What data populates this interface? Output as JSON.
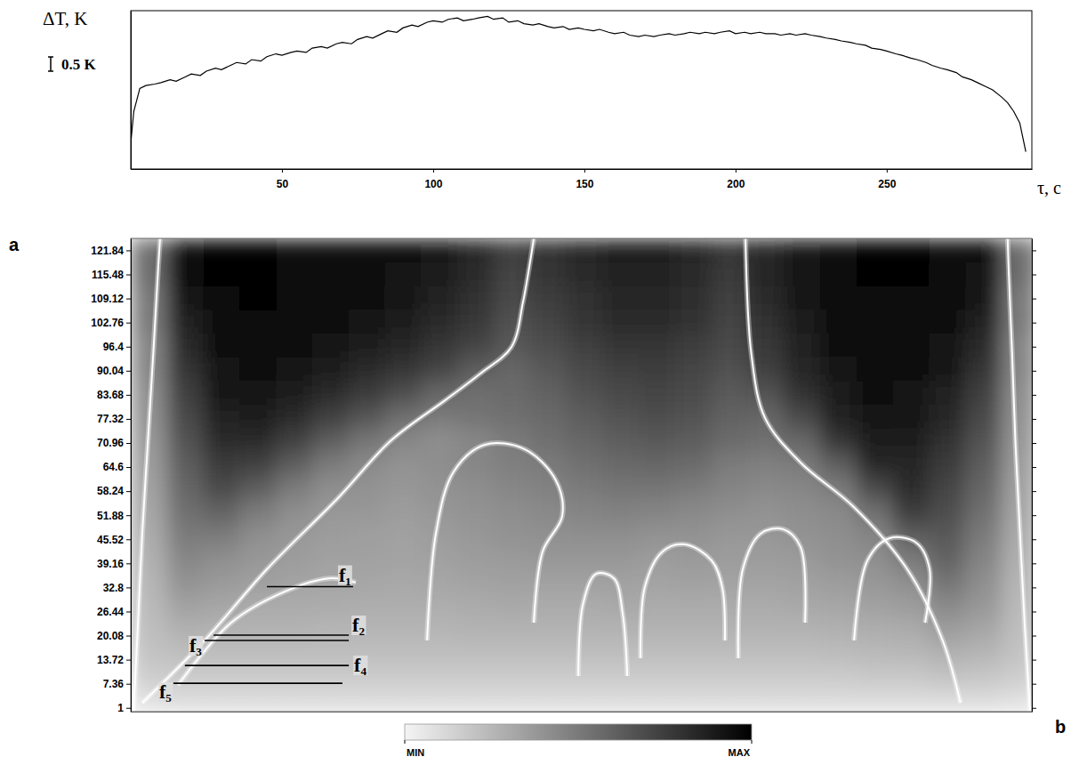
{
  "chart_data": [
    {
      "type": "line",
      "y_label": "ΔT, K",
      "x_label": "τ, c",
      "color": "#000000",
      "xlim": [
        0,
        298
      ],
      "ylim": [
        0,
        5.5
      ],
      "xticks": [
        50,
        100,
        150,
        200,
        250
      ],
      "tick_labels": "x",
      "scale_bar": {
        "value": 0.5,
        "label": "0.5 K"
      },
      "x": [
        0,
        1,
        3,
        5,
        8,
        10,
        13,
        15,
        18,
        20,
        23,
        25,
        28,
        30,
        33,
        35,
        38,
        40,
        43,
        45,
        48,
        50,
        53,
        55,
        58,
        60,
        63,
        65,
        68,
        70,
        73,
        75,
        78,
        80,
        83,
        85,
        88,
        90,
        93,
        95,
        98,
        100,
        103,
        105,
        108,
        110,
        113,
        115,
        118,
        120,
        123,
        125,
        128,
        130,
        133,
        135,
        138,
        140,
        143,
        145,
        148,
        150,
        153,
        155,
        158,
        160,
        163,
        165,
        168,
        170,
        173,
        175,
        178,
        180,
        183,
        185,
        188,
        190,
        193,
        195,
        198,
        200,
        203,
        205,
        208,
        210,
        213,
        215,
        218,
        220,
        223,
        225,
        228,
        230,
        233,
        235,
        238,
        240,
        243,
        245,
        248,
        250,
        253,
        255,
        258,
        260,
        263,
        265,
        268,
        270,
        273,
        275,
        278,
        280,
        283,
        285,
        288,
        290,
        292,
        294,
        296
      ],
      "values": [
        0.9,
        2.0,
        2.8,
        2.9,
        2.95,
        3.0,
        3.1,
        3.05,
        3.2,
        3.3,
        3.25,
        3.4,
        3.5,
        3.45,
        3.6,
        3.7,
        3.65,
        3.8,
        3.75,
        3.9,
        4.0,
        3.95,
        4.05,
        4.1,
        4.05,
        4.2,
        4.25,
        4.2,
        4.35,
        4.4,
        4.35,
        4.5,
        4.6,
        4.55,
        4.7,
        4.8,
        4.75,
        4.9,
        5.0,
        4.95,
        5.1,
        5.15,
        5.1,
        5.2,
        5.25,
        5.15,
        5.2,
        5.25,
        5.3,
        5.2,
        5.25,
        5.1,
        5.15,
        5.05,
        5.0,
        5.05,
        4.95,
        4.9,
        4.95,
        4.85,
        4.9,
        4.85,
        4.8,
        4.85,
        4.75,
        4.7,
        4.75,
        4.65,
        4.6,
        4.65,
        4.6,
        4.65,
        4.7,
        4.65,
        4.7,
        4.75,
        4.7,
        4.75,
        4.7,
        4.75,
        4.8,
        4.7,
        4.75,
        4.7,
        4.75,
        4.7,
        4.7,
        4.65,
        4.7,
        4.65,
        4.7,
        4.65,
        4.6,
        4.55,
        4.5,
        4.45,
        4.4,
        4.35,
        4.3,
        4.2,
        4.15,
        4.1,
        4.0,
        3.95,
        3.85,
        3.8,
        3.7,
        3.6,
        3.5,
        3.45,
        3.35,
        3.2,
        3.1,
        3.0,
        2.85,
        2.75,
        2.5,
        2.3,
        2.0,
        1.6,
        0.6
      ]
    },
    {
      "type": "heatmap",
      "xlim": [
        0,
        298
      ],
      "ylim": [
        0,
        125
      ],
      "tick_labels": "y",
      "yticks": [
        1,
        7.36,
        13.72,
        20.08,
        26.44,
        32.8,
        39.16,
        45.52,
        51.88,
        58.24,
        64.6,
        70.96,
        77.32,
        83.68,
        90.04,
        96.4,
        102.76,
        109.12,
        115.48,
        121.84
      ],
      "panel_labels": [
        "a",
        "b"
      ],
      "x_edges": [
        0,
        12,
        24,
        36,
        48,
        60,
        72,
        84,
        96,
        108,
        120,
        132,
        144,
        156,
        168,
        180,
        192,
        204,
        216,
        228,
        240,
        252,
        264,
        276,
        288,
        300
      ],
      "y_edges": [
        0,
        6.25,
        12.5,
        18.75,
        25,
        31.25,
        37.5,
        43.75,
        50,
        56.25,
        62.5,
        68.75,
        75,
        81.25,
        87.5,
        93.75,
        100,
        106.25,
        112.5,
        118.75,
        125
      ],
      "z": [
        [
          0.08,
          0.1,
          0.1,
          0.1,
          0.1,
          0.1,
          0.1,
          0.1,
          0.1,
          0.1,
          0.1,
          0.1,
          0.1,
          0.1,
          0.1,
          0.1,
          0.1,
          0.1,
          0.1,
          0.1,
          0.1,
          0.1,
          0.1,
          0.1,
          0.08
        ],
        [
          0.16,
          0.17,
          0.17,
          0.17,
          0.17,
          0.17,
          0.17,
          0.17,
          0.17,
          0.17,
          0.17,
          0.17,
          0.17,
          0.17,
          0.17,
          0.17,
          0.17,
          0.17,
          0.17,
          0.17,
          0.18,
          0.18,
          0.2,
          0.19,
          0.16
        ],
        [
          0.2,
          0.22,
          0.22,
          0.22,
          0.22,
          0.22,
          0.22,
          0.22,
          0.22,
          0.22,
          0.22,
          0.22,
          0.22,
          0.22,
          0.22,
          0.22,
          0.22,
          0.22,
          0.22,
          0.23,
          0.24,
          0.25,
          0.28,
          0.26,
          0.2
        ],
        [
          0.22,
          0.28,
          0.27,
          0.27,
          0.27,
          0.26,
          0.26,
          0.26,
          0.26,
          0.27,
          0.27,
          0.27,
          0.27,
          0.27,
          0.27,
          0.27,
          0.27,
          0.27,
          0.27,
          0.28,
          0.29,
          0.3,
          0.36,
          0.32,
          0.22
        ],
        [
          0.24,
          0.34,
          0.32,
          0.3,
          0.3,
          0.3,
          0.29,
          0.29,
          0.29,
          0.3,
          0.31,
          0.3,
          0.3,
          0.31,
          0.3,
          0.3,
          0.3,
          0.3,
          0.31,
          0.32,
          0.34,
          0.36,
          0.44,
          0.38,
          0.24
        ],
        [
          0.26,
          0.4,
          0.37,
          0.35,
          0.33,
          0.32,
          0.32,
          0.31,
          0.32,
          0.33,
          0.34,
          0.34,
          0.34,
          0.34,
          0.33,
          0.34,
          0.33,
          0.33,
          0.34,
          0.36,
          0.38,
          0.42,
          0.52,
          0.42,
          0.26
        ],
        [
          0.28,
          0.45,
          0.42,
          0.38,
          0.36,
          0.34,
          0.34,
          0.33,
          0.34,
          0.36,
          0.37,
          0.38,
          0.38,
          0.38,
          0.36,
          0.37,
          0.36,
          0.36,
          0.37,
          0.4,
          0.42,
          0.5,
          0.6,
          0.46,
          0.28
        ],
        [
          0.3,
          0.5,
          0.5,
          0.42,
          0.38,
          0.36,
          0.35,
          0.34,
          0.36,
          0.38,
          0.4,
          0.41,
          0.42,
          0.42,
          0.4,
          0.4,
          0.38,
          0.38,
          0.4,
          0.42,
          0.46,
          0.62,
          0.64,
          0.5,
          0.3
        ],
        [
          0.32,
          0.54,
          0.6,
          0.5,
          0.42,
          0.38,
          0.38,
          0.36,
          0.38,
          0.4,
          0.42,
          0.44,
          0.46,
          0.47,
          0.46,
          0.44,
          0.42,
          0.4,
          0.42,
          0.44,
          0.55,
          0.76,
          0.68,
          0.54,
          0.32
        ],
        [
          0.34,
          0.58,
          0.7,
          0.62,
          0.5,
          0.42,
          0.4,
          0.38,
          0.4,
          0.42,
          0.45,
          0.47,
          0.5,
          0.52,
          0.52,
          0.5,
          0.46,
          0.44,
          0.45,
          0.5,
          0.7,
          0.82,
          0.72,
          0.58,
          0.34
        ],
        [
          0.36,
          0.62,
          0.76,
          0.74,
          0.62,
          0.5,
          0.44,
          0.4,
          0.42,
          0.45,
          0.48,
          0.5,
          0.54,
          0.57,
          0.58,
          0.56,
          0.5,
          0.48,
          0.5,
          0.62,
          0.84,
          0.85,
          0.76,
          0.62,
          0.36
        ],
        [
          0.38,
          0.66,
          0.82,
          0.82,
          0.74,
          0.62,
          0.52,
          0.45,
          0.42,
          0.45,
          0.5,
          0.54,
          0.58,
          0.62,
          0.64,
          0.62,
          0.56,
          0.54,
          0.58,
          0.78,
          0.88,
          0.88,
          0.8,
          0.66,
          0.38
        ],
        [
          0.4,
          0.7,
          0.86,
          0.88,
          0.82,
          0.74,
          0.65,
          0.55,
          0.5,
          0.52,
          0.54,
          0.57,
          0.62,
          0.66,
          0.68,
          0.66,
          0.6,
          0.58,
          0.7,
          0.86,
          0.91,
          0.9,
          0.84,
          0.7,
          0.4
        ],
        [
          0.42,
          0.74,
          0.9,
          0.92,
          0.88,
          0.82,
          0.76,
          0.68,
          0.58,
          0.55,
          0.56,
          0.6,
          0.66,
          0.7,
          0.72,
          0.69,
          0.63,
          0.66,
          0.8,
          0.89,
          0.93,
          0.92,
          0.87,
          0.74,
          0.42
        ],
        [
          0.45,
          0.78,
          0.92,
          0.94,
          0.92,
          0.88,
          0.83,
          0.78,
          0.72,
          0.62,
          0.58,
          0.64,
          0.7,
          0.74,
          0.75,
          0.72,
          0.67,
          0.74,
          0.84,
          0.91,
          0.95,
          0.94,
          0.9,
          0.78,
          0.45
        ],
        [
          0.45,
          0.82,
          0.94,
          0.96,
          0.95,
          0.92,
          0.88,
          0.84,
          0.78,
          0.72,
          0.64,
          0.68,
          0.74,
          0.78,
          0.78,
          0.75,
          0.7,
          0.77,
          0.86,
          0.93,
          0.96,
          0.95,
          0.92,
          0.82,
          0.45
        ],
        [
          0.5,
          0.86,
          0.96,
          0.97,
          0.96,
          0.94,
          0.91,
          0.88,
          0.83,
          0.77,
          0.67,
          0.72,
          0.78,
          0.82,
          0.82,
          0.79,
          0.72,
          0.8,
          0.88,
          0.94,
          0.97,
          0.96,
          0.94,
          0.86,
          0.5
        ],
        [
          0.5,
          0.9,
          0.97,
          0.98,
          0.97,
          0.95,
          0.93,
          0.9,
          0.86,
          0.8,
          0.7,
          0.75,
          0.8,
          0.84,
          0.84,
          0.81,
          0.74,
          0.82,
          0.9,
          0.95,
          0.97,
          0.97,
          0.95,
          0.9,
          0.5
        ],
        [
          0.55,
          0.93,
          0.98,
          0.98,
          0.97,
          0.96,
          0.94,
          0.92,
          0.88,
          0.82,
          0.72,
          0.78,
          0.83,
          0.86,
          0.86,
          0.83,
          0.76,
          0.84,
          0.91,
          0.96,
          0.98,
          0.98,
          0.96,
          0.92,
          0.55
        ],
        [
          0.55,
          0.95,
          0.98,
          0.98,
          0.97,
          0.96,
          0.95,
          0.93,
          0.9,
          0.85,
          0.75,
          0.8,
          0.85,
          0.88,
          0.88,
          0.85,
          0.78,
          0.85,
          0.92,
          0.96,
          0.98,
          0.98,
          0.97,
          0.93,
          0.55
        ]
      ],
      "colorbar": {
        "range": [
          0,
          1
        ],
        "ticks": [
          {
            "value": 0,
            "label": "MIN"
          },
          {
            "value": 1,
            "label": "MAX"
          }
        ]
      },
      "ridges": [
        {
          "x": [
            0.9,
            2.4,
            3.8,
            5.6,
            7.4,
            9.1,
            9.7
          ],
          "y": [
            0,
            23.5,
            47,
            70.5,
            94,
            117.5,
            125
          ]
        },
        {
          "x": [
            297.4,
            295.6,
            294.1,
            292.6,
            291.5,
            290.3,
            290.0
          ],
          "y": [
            0,
            23.5,
            47,
            70.5,
            94,
            117.5,
            125
          ]
        },
        {
          "x": [
            3.8,
            24.4,
            45,
            68.5,
            86.2,
            103.9,
            115.6,
            125.9,
            129.7,
            131.8,
            133.3
          ],
          "y": [
            2.3,
            18.8,
            37.6,
            56.4,
            71.7,
            82.2,
            89.3,
            96.3,
            108.1,
            117.5,
            125
          ]
        },
        {
          "x": [
            203.3,
            205.3,
            209.8,
            221.5,
            239.2,
            256.8,
            268.5,
            274.4
          ],
          "y": [
            125,
            94,
            77.5,
            65.8,
            54,
            37.6,
            18.8,
            2.3
          ]
        },
        {
          "x": [
            98,
            100.9,
            106.8,
            117.1,
            130.3,
            140.6,
            142.7,
            136.2,
            133.3
          ],
          "y": [
            18.8,
            47,
            63.4,
            70.5,
            69.3,
            61.1,
            51.7,
            42.3,
            23.5
          ]
        },
        {
          "x": [
            168.6,
            170.0,
            175.9,
            183.3,
            192.1,
            195.6,
            196.5
          ],
          "y": [
            14.1,
            32.9,
            42.3,
            44.2,
            39.9,
            32.9,
            18.8
          ]
        },
        {
          "x": [
            200.9,
            202.4,
            208.3,
            215.7,
            221.5,
            223.0
          ],
          "y": [
            14.1,
            37.6,
            47.0,
            48.2,
            43.5,
            23.5
          ]
        },
        {
          "x": [
            148,
            149.5,
            153.9,
            159.8,
            162.7,
            164.2
          ],
          "y": [
            9.4,
            28.2,
            36.4,
            35.2,
            25.8,
            9.4
          ]
        },
        {
          "x": [
            15.6,
            33.2,
            50.9,
            65.6,
            74.4
          ],
          "y": [
            7.0,
            23.5,
            31.7,
            35.2,
            34.1
          ]
        },
        {
          "x": [
            239.2,
            243.6,
            251,
            259.8,
            264.2,
            262.7
          ],
          "y": [
            18.8,
            39.9,
            45.8,
            44.6,
            37.6,
            23.5
          ]
        }
      ],
      "annotations": [
        {
          "text": "f₁",
          "y": 33,
          "x": [
            45,
            73.5
          ]
        },
        {
          "text": "f₂",
          "y": 20.2,
          "x": [
            27.4,
            72.1
          ]
        },
        {
          "text": "f₃",
          "y": 18.8,
          "x": [
            24.4,
            72.1
          ]
        },
        {
          "text": "f₄",
          "y": 12.2,
          "x": [
            17.9,
            72.1
          ]
        },
        {
          "text": "f₅",
          "y": 7.5,
          "x": [
            14.1,
            70
          ]
        }
      ]
    }
  ]
}
